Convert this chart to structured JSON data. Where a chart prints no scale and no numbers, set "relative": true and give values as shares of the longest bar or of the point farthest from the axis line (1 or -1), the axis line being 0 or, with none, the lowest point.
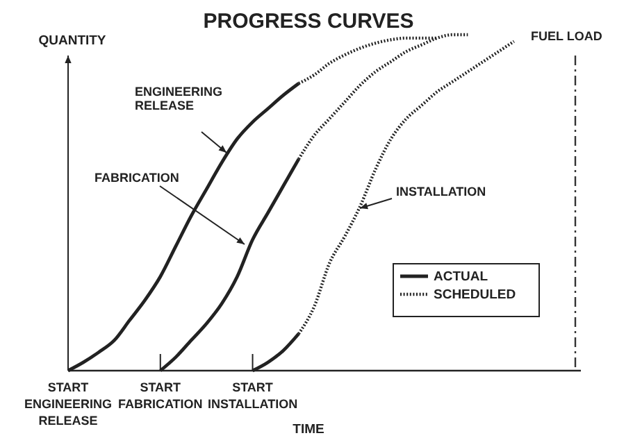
{
  "chart_data": {
    "type": "line",
    "title": "PROGRESS CURVES",
    "xlabel": "TIME",
    "ylabel": "QUANTITY",
    "relative": true,
    "categories": [
      "START\nENGINEERING\nRELEASE",
      null,
      null,
      null,
      null,
      null,
      "START\nFABRICATION",
      null,
      null,
      null,
      null,
      null,
      "START\nINSTALLATION",
      null,
      null,
      null,
      null,
      null,
      null,
      null,
      null,
      null,
      null,
      null,
      null,
      null,
      null,
      null,
      null,
      null,
      null,
      null,
      null,
      null
    ],
    "annotations": [
      "ENGINEERING RELEASE",
      "FABRICATION",
      "INSTALLATION",
      "FUEL LOAD"
    ],
    "legend": "right",
    "series": [
      {
        "name": "ACTUAL",
        "color": "#222222",
        "line_style": "solid",
        "values": [
          0,
          0.025,
          0.055,
          0.09,
          0.15,
          0.21,
          0.28,
          0.37,
          0.46,
          0.54,
          0.62,
          0.69,
          0.74,
          0.78,
          0.82,
          0.855,
          null,
          null,
          null,
          null,
          null,
          null,
          null,
          null,
          null,
          null,
          null,
          null,
          null,
          null,
          null,
          null,
          null,
          null
        ]
      },
      {
        "name": "SCHEDULED",
        "color": "#222222",
        "line_style": "dotted",
        "values": [
          null,
          null,
          null,
          null,
          null,
          null,
          null,
          null,
          null,
          null,
          null,
          null,
          null,
          null,
          null,
          0.855,
          0.88,
          0.915,
          0.94,
          0.96,
          0.975,
          0.985,
          0.99,
          0.99,
          0.99,
          null,
          null,
          null,
          null,
          null,
          null,
          null,
          null,
          null
        ]
      },
      {
        "color": "#222222",
        "line_style": "solid",
        "values": [
          null,
          null,
          null,
          null,
          null,
          null,
          0,
          0.04,
          0.09,
          0.14,
          0.2,
          0.28,
          0.39,
          0.47,
          0.55,
          0.63,
          null,
          null,
          null,
          null,
          null,
          null,
          null,
          null,
          null,
          null,
          null,
          null,
          null,
          null,
          null,
          null,
          null,
          null
        ]
      },
      {
        "color": "#222222",
        "line_style": "dotted",
        "values": [
          null,
          null,
          null,
          null,
          null,
          null,
          null,
          null,
          null,
          null,
          null,
          null,
          null,
          null,
          null,
          0.63,
          0.7,
          0.75,
          0.8,
          0.85,
          0.89,
          0.92,
          0.95,
          0.97,
          0.99,
          1,
          1,
          null,
          null,
          null,
          null,
          null,
          null,
          null
        ]
      },
      {
        "color": "#222222",
        "line_style": "solid",
        "values": [
          null,
          null,
          null,
          null,
          null,
          null,
          null,
          null,
          null,
          null,
          null,
          null,
          0,
          0.025,
          0.06,
          0.11,
          null,
          null,
          null,
          null,
          null,
          null,
          null,
          null,
          null,
          null,
          null,
          null,
          null,
          null,
          null,
          null,
          null,
          null
        ]
      },
      {
        "color": "#222222",
        "line_style": "dotted",
        "values": [
          null,
          null,
          null,
          null,
          null,
          null,
          null,
          null,
          null,
          null,
          null,
          null,
          null,
          null,
          null,
          0.11,
          0.19,
          0.32,
          0.4,
          0.49,
          0.6,
          0.69,
          0.75,
          0.79,
          0.83,
          0.86,
          0.89,
          0.92,
          0.95,
          0.98,
          null,
          null,
          null,
          null
        ]
      }
    ]
  }
}
